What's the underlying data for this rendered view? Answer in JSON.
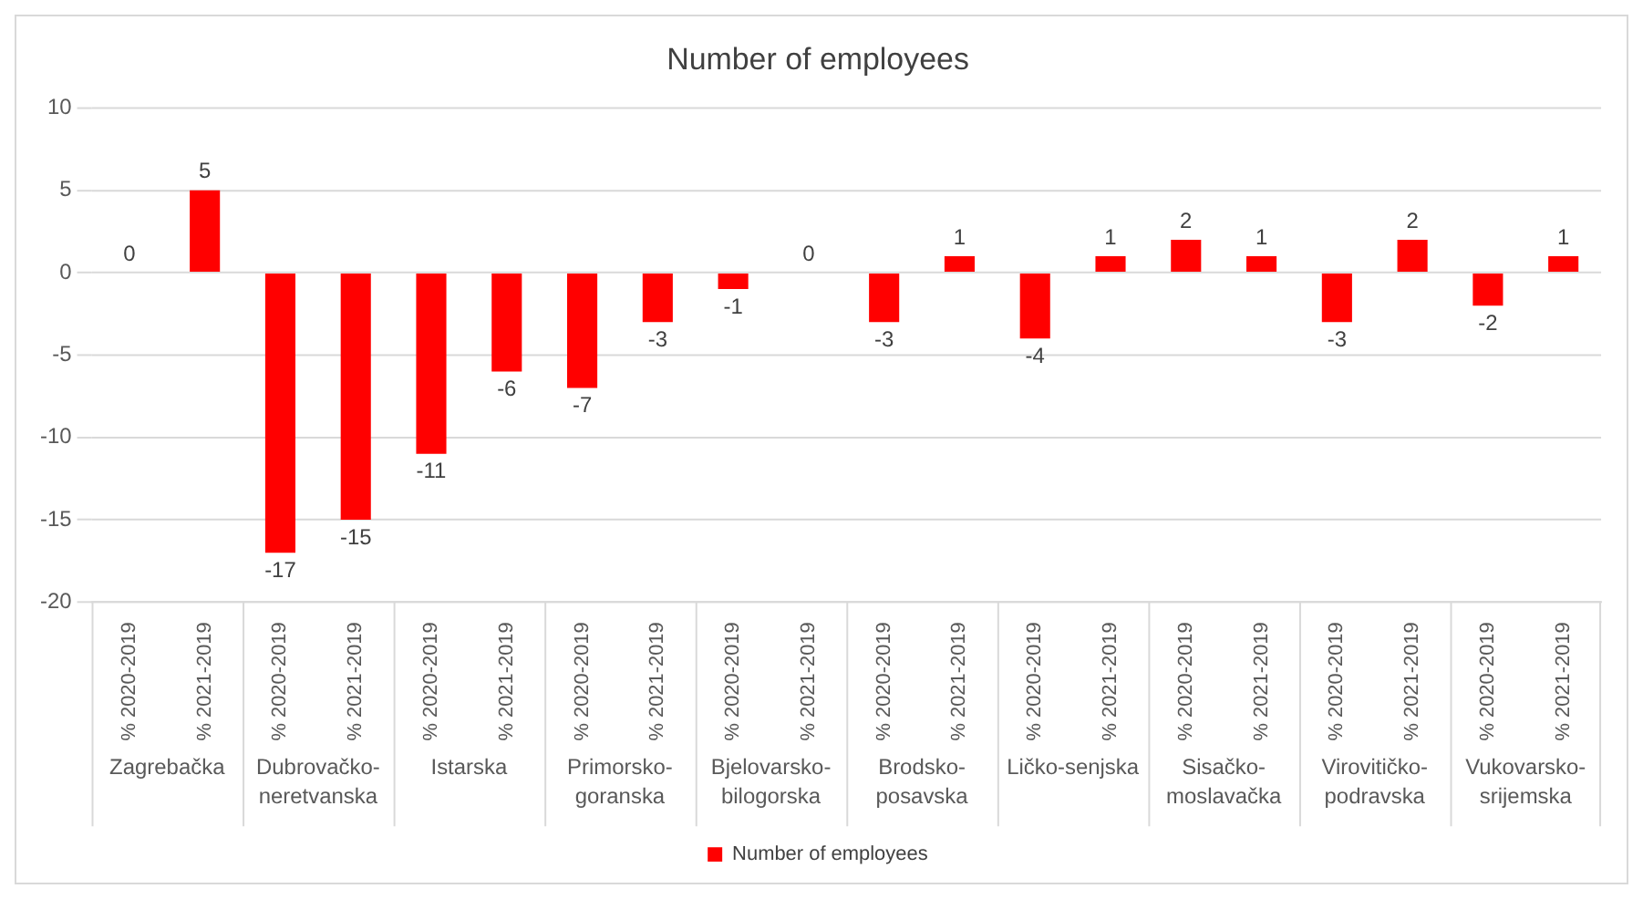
{
  "chart_data": {
    "type": "bar",
    "title": "Number of employees",
    "categories": [
      "% 2020-2019",
      "% 2021-2019",
      "% 2020-2019",
      "% 2021-2019",
      "% 2020-2019",
      "% 2021-2019",
      "% 2020-2019",
      "% 2021-2019",
      "% 2020-2019",
      "% 2021-2019",
      "% 2020-2019",
      "% 2021-2019",
      "% 2020-2019",
      "% 2021-2019",
      "% 2020-2019",
      "% 2021-2019",
      "% 2020-2019",
      "% 2021-2019",
      "% 2020-2019",
      "% 2021-2019"
    ],
    "series": [
      {
        "name": "Number of employees",
        "color": "#ff0000",
        "values": [
          0,
          5,
          -17,
          -15,
          -11,
          -6,
          -7,
          -3,
          -1,
          0,
          -3,
          1,
          -4,
          1,
          2,
          1,
          -3,
          2,
          -2,
          1
        ]
      }
    ],
    "annotations": [
      "Zagrebačka",
      "Dubrovačko-neretvanska",
      "Istarska",
      "Primorsko-goranska",
      "Bjelovarsko-bilogorska",
      "Brodsko-posavska",
      "Ličko-senjska",
      "Sisačko-moslavačka",
      "Virovitičko-podravska",
      "Vukovarsko-srijemska"
    ],
    "ylim": [
      -20,
      10
    ],
    "yticks": [
      -20,
      -15,
      -10,
      -5,
      0,
      5,
      10
    ],
    "grid": "y",
    "legend": "bottom",
    "data_labels": true
  }
}
